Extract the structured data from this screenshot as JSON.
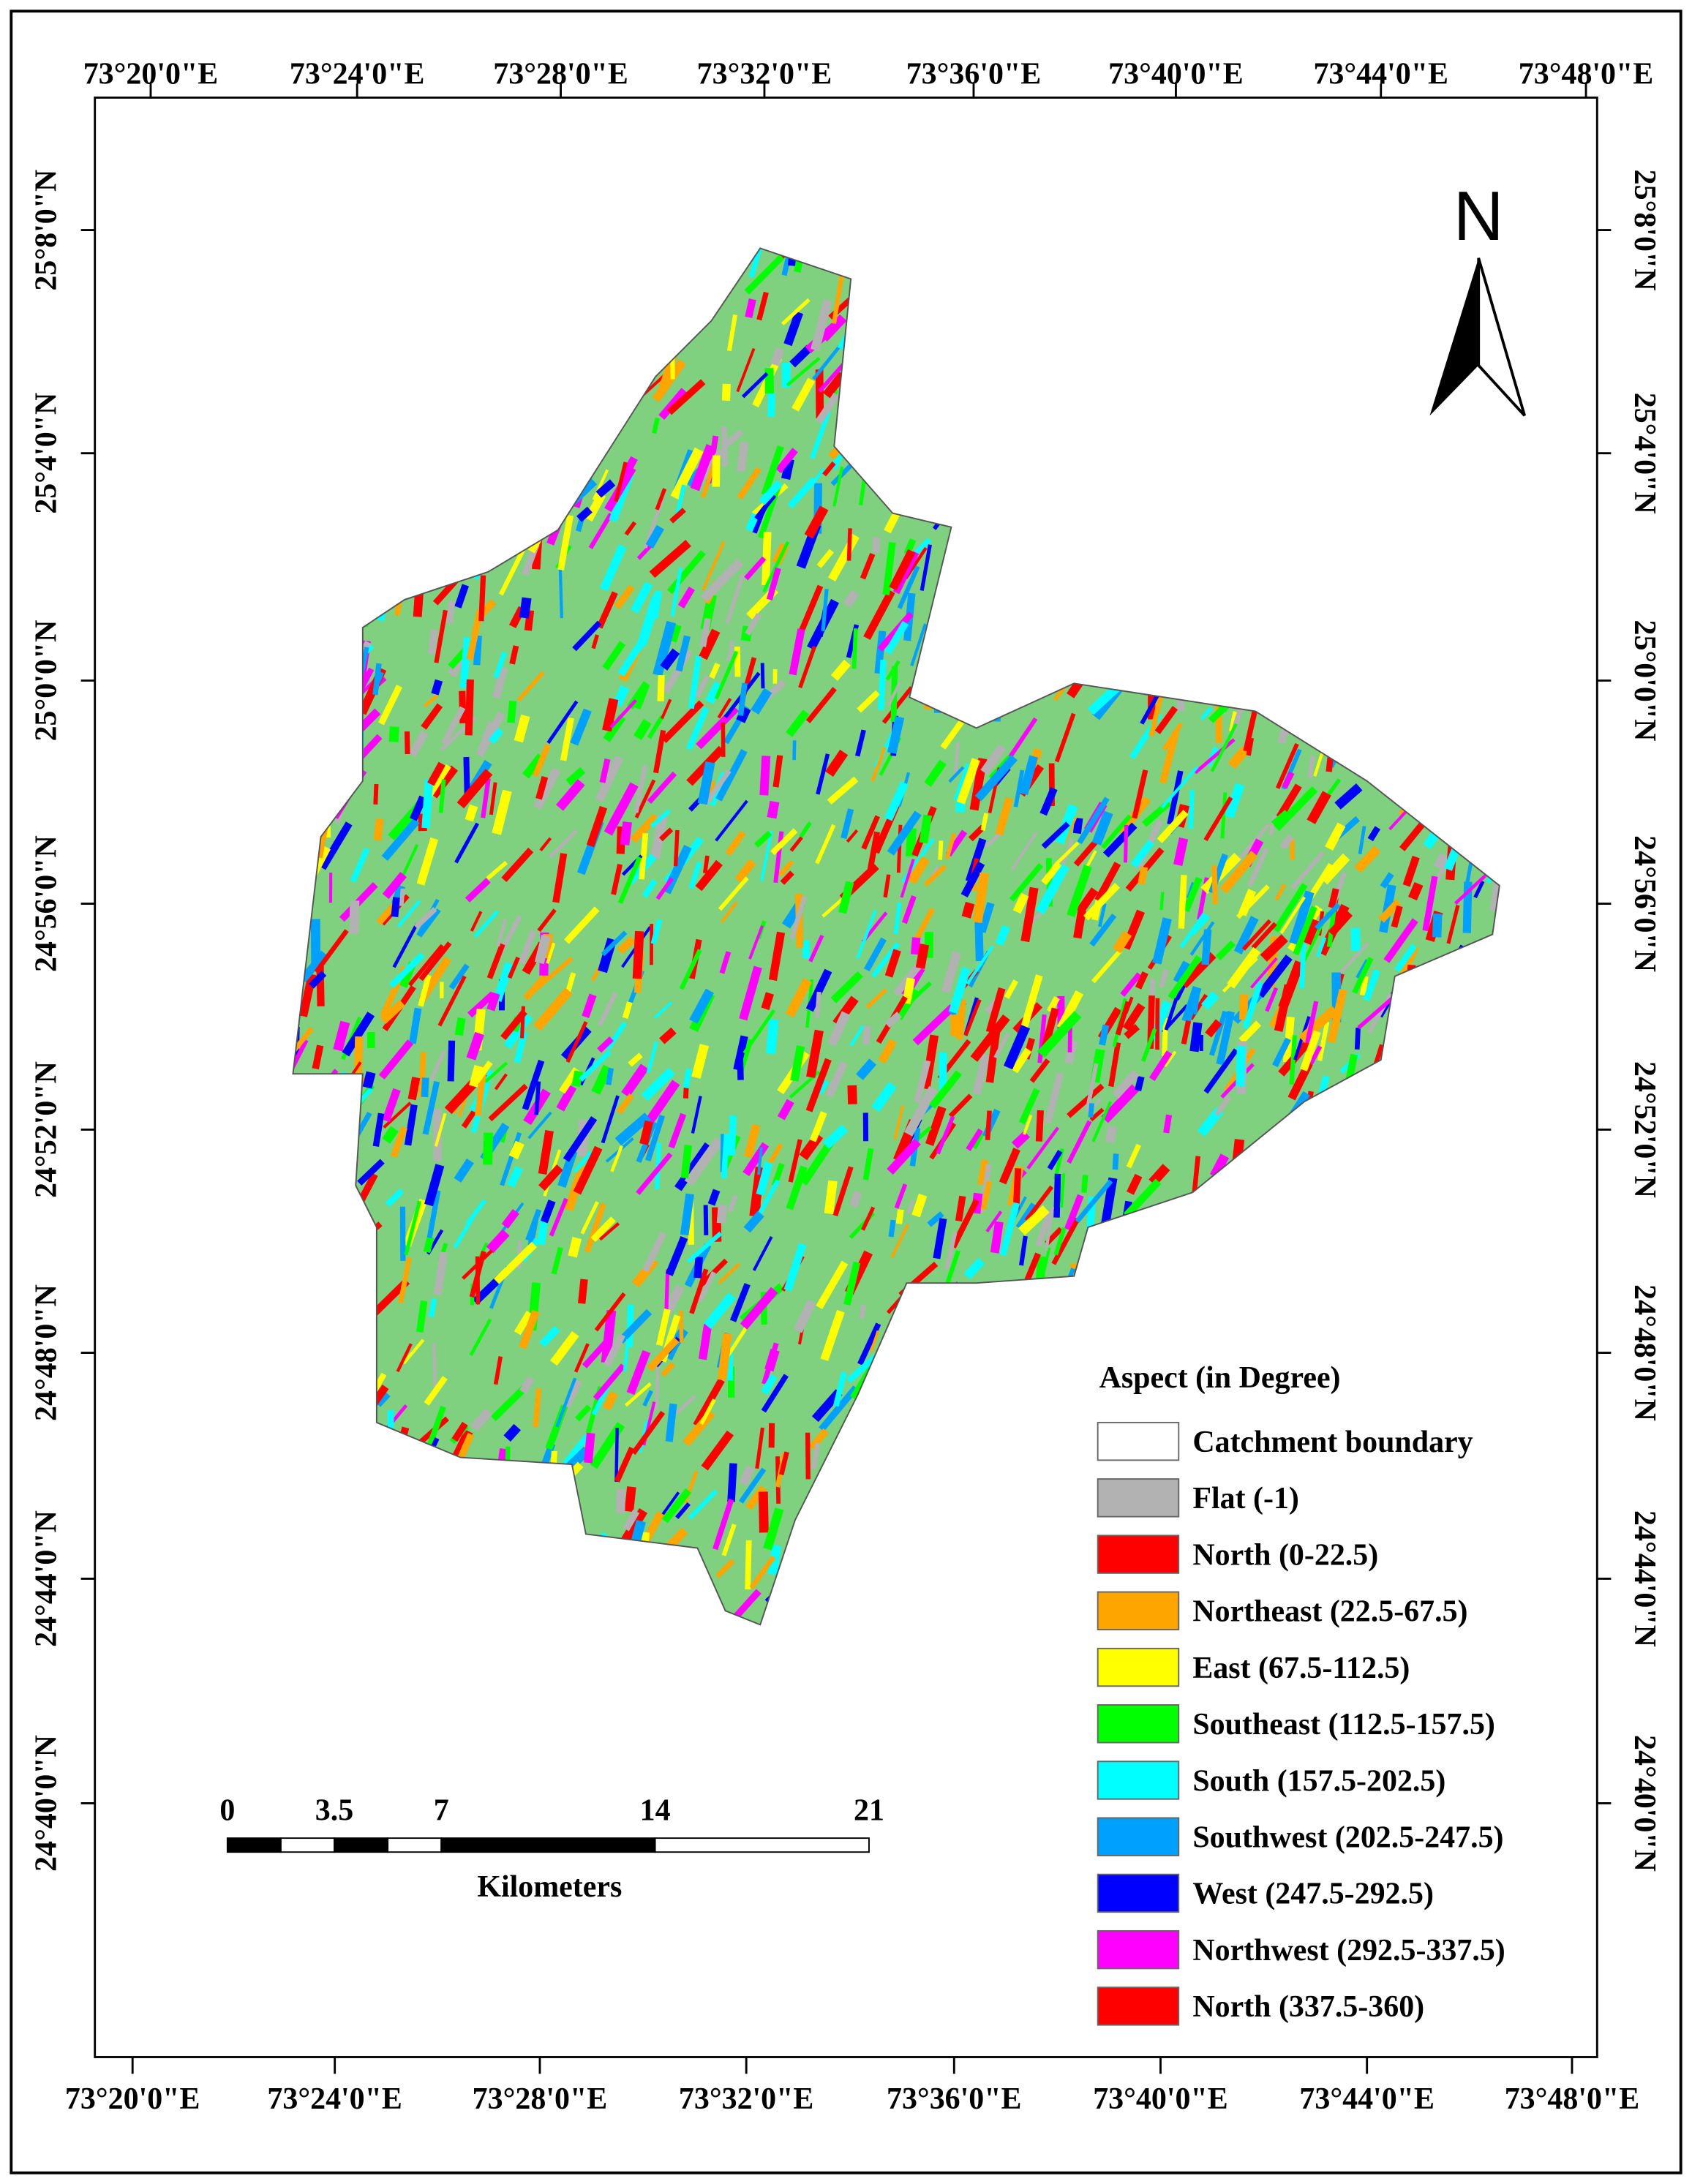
{
  "longitude_labels": [
    "73°20'0\"E",
    "73°24'0\"E",
    "73°28'0\"E",
    "73°32'0\"E",
    "73°36'0\"E",
    "73°40'0\"E",
    "73°44'0\"E",
    "73°48'0\"E"
  ],
  "latitude_labels": [
    "25°8'0\"N",
    "25°4'0\"N",
    "25°0'0\"N",
    "24°56'0\"N",
    "24°52'0\"N",
    "24°48'0\"N",
    "24°44'0\"N",
    "24°40'0\"N"
  ],
  "north_arrow": "N",
  "legend": {
    "title": "Aspect (in Degree)",
    "items": [
      {
        "label": "Catchment boundary",
        "color": "#ffffff"
      },
      {
        "label": "Flat (-1)",
        "color": "#b2b2b2"
      },
      {
        "label": "North (0-22.5)",
        "color": "#ff0000"
      },
      {
        "label": "Northeast (22.5-67.5)",
        "color": "#ffa500"
      },
      {
        "label": "East (67.5-112.5)",
        "color": "#ffff00"
      },
      {
        "label": "Southeast (112.5-157.5)",
        "color": "#00ff00"
      },
      {
        "label": "South (157.5-202.5)",
        "color": "#00ffff"
      },
      {
        "label": "Southwest (202.5-247.5)",
        "color": "#00a0ff"
      },
      {
        "label": "West (247.5-292.5)",
        "color": "#0000ff"
      },
      {
        "label": "Northwest (292.5-337.5)",
        "color": "#ff00ff"
      },
      {
        "label": "North (337.5-360)",
        "color": "#ff0000"
      }
    ]
  },
  "scale_bar": {
    "ticks": [
      0,
      3.5,
      7,
      14,
      21
    ],
    "unit": "Kilometers"
  }
}
